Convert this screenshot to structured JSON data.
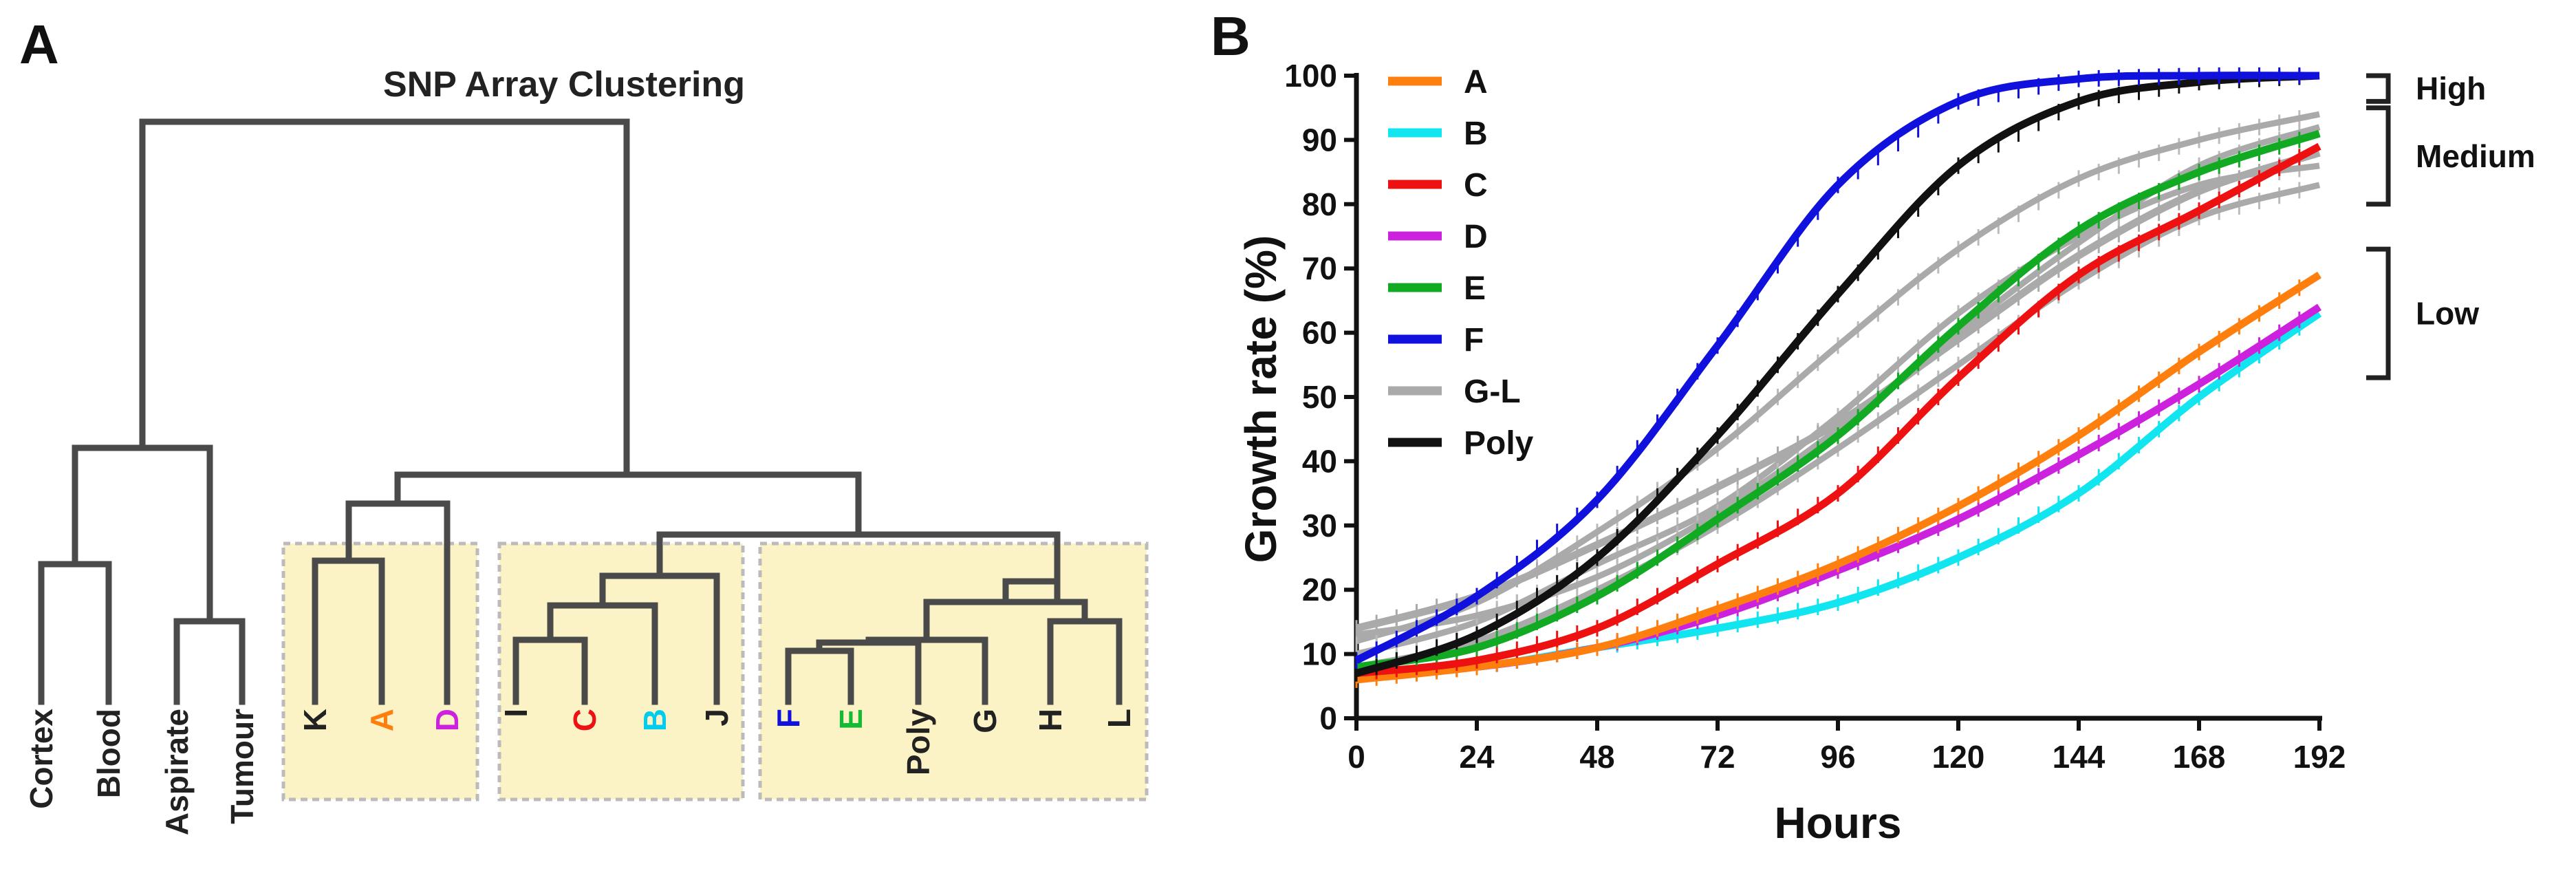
{
  "panel_a": {
    "letter": "A",
    "title": "SNP Array Clustering",
    "leaves": [
      {
        "id": "cortex",
        "label": "Cortex",
        "color": "#222222"
      },
      {
        "id": "blood",
        "label": "Blood",
        "color": "#222222"
      },
      {
        "id": "aspirate",
        "label": "Aspirate",
        "color": "#222222"
      },
      {
        "id": "tumour",
        "label": "Tumour",
        "color": "#222222"
      },
      {
        "id": "k",
        "label": "K",
        "color": "#222222"
      },
      {
        "id": "a",
        "label": "A",
        "color": "#ff7f0e"
      },
      {
        "id": "d",
        "label": "D",
        "color": "#cc22dd"
      },
      {
        "id": "i",
        "label": "I",
        "color": "#222222"
      },
      {
        "id": "c",
        "label": "C",
        "color": "#ee1111"
      },
      {
        "id": "b",
        "label": "B",
        "color": "#00ccee"
      },
      {
        "id": "j",
        "label": "J",
        "color": "#222222"
      },
      {
        "id": "f",
        "label": "F",
        "color": "#1111dd"
      },
      {
        "id": "e",
        "label": "E",
        "color": "#11bb33"
      },
      {
        "id": "poly",
        "label": "Poly",
        "color": "#222222"
      },
      {
        "id": "g",
        "label": "G",
        "color": "#222222"
      },
      {
        "id": "h",
        "label": "H",
        "color": "#222222"
      },
      {
        "id": "l",
        "label": "L",
        "color": "#222222"
      }
    ]
  },
  "chart_data": {
    "type": "line",
    "letter": "B",
    "title": "",
    "xlabel": "Hours",
    "ylabel": "Growth rate (%)",
    "xlim": [
      0,
      192
    ],
    "ylim": [
      0,
      100
    ],
    "xticks": [
      0,
      24,
      48,
      72,
      96,
      120,
      144,
      168,
      192
    ],
    "yticks": [
      0,
      10,
      20,
      30,
      40,
      50,
      60,
      70,
      80,
      90,
      100
    ],
    "legend_position": "top-left",
    "series": [
      {
        "name": "A",
        "color": "#ff7f0e",
        "x": [
          0,
          24,
          48,
          72,
          96,
          120,
          144,
          168,
          192
        ],
        "y": [
          6,
          8,
          11,
          17,
          24,
          33,
          44,
          57,
          69
        ]
      },
      {
        "name": "B",
        "color": "#11e6f0",
        "x": [
          0,
          24,
          48,
          72,
          96,
          120,
          144,
          168,
          192
        ],
        "y": [
          7,
          8,
          11,
          14,
          18,
          25,
          35,
          50,
          63
        ]
      },
      {
        "name": "C",
        "color": "#ee1111",
        "x": [
          0,
          24,
          48,
          72,
          96,
          120,
          144,
          168,
          192
        ],
        "y": [
          7,
          9,
          14,
          24,
          35,
          53,
          69,
          79,
          89
        ]
      },
      {
        "name": "D",
        "color": "#cc22dd",
        "x": [
          0,
          24,
          48,
          72,
          96,
          120,
          144,
          168,
          192
        ],
        "y": [
          7,
          8,
          11,
          16,
          23,
          31,
          41,
          52,
          64
        ]
      },
      {
        "name": "E",
        "color": "#11aa22",
        "x": [
          0,
          24,
          48,
          72,
          96,
          120,
          144,
          168,
          192
        ],
        "y": [
          8,
          11,
          19,
          31,
          44,
          61,
          76,
          85,
          91
        ]
      },
      {
        "name": "F",
        "color": "#1111dd",
        "x": [
          0,
          24,
          48,
          72,
          96,
          120,
          144,
          168,
          192
        ],
        "y": [
          9,
          19,
          34,
          58,
          83,
          96,
          99.5,
          100,
          100
        ]
      },
      {
        "name": "G-L",
        "color": "#aaaaaa",
        "x": [
          0,
          24,
          48,
          72,
          96,
          120,
          144,
          168,
          192
        ],
        "y": [
          14,
          19,
          27,
          36,
          46,
          59,
          72,
          82,
          88
        ]
      },
      {
        "name": "Poly",
        "color": "#111111",
        "x": [
          0,
          24,
          48,
          72,
          96,
          120,
          144,
          168,
          192
        ],
        "y": [
          7,
          13,
          25,
          44,
          66,
          86,
          96,
          99,
          100
        ]
      }
    ],
    "extra_gray_series": [
      {
        "x": [
          0,
          24,
          48,
          72,
          96,
          120,
          144,
          168,
          192
        ],
        "y": [
          12,
          18,
          29,
          42,
          58,
          73,
          84,
          90,
          94
        ]
      },
      {
        "x": [
          0,
          24,
          48,
          72,
          96,
          120,
          144,
          168,
          192
        ],
        "y": [
          10,
          15,
          24,
          33,
          47,
          63,
          75,
          83,
          86
        ]
      },
      {
        "x": [
          0,
          24,
          48,
          72,
          96,
          120,
          144,
          168,
          192
        ],
        "y": [
          8,
          12,
          20,
          30,
          42,
          55,
          68,
          78,
          83
        ]
      },
      {
        "x": [
          0,
          24,
          48,
          72,
          96,
          120,
          144,
          168,
          192
        ],
        "y": [
          13,
          16,
          22,
          32,
          45,
          60,
          74,
          86,
          92
        ]
      }
    ],
    "annotations": [
      {
        "label": "High",
        "from": 96,
        "to": 100
      },
      {
        "label": "Medium",
        "from": 80,
        "to": 95
      },
      {
        "label": "Low",
        "from": 53,
        "to": 73
      }
    ]
  }
}
